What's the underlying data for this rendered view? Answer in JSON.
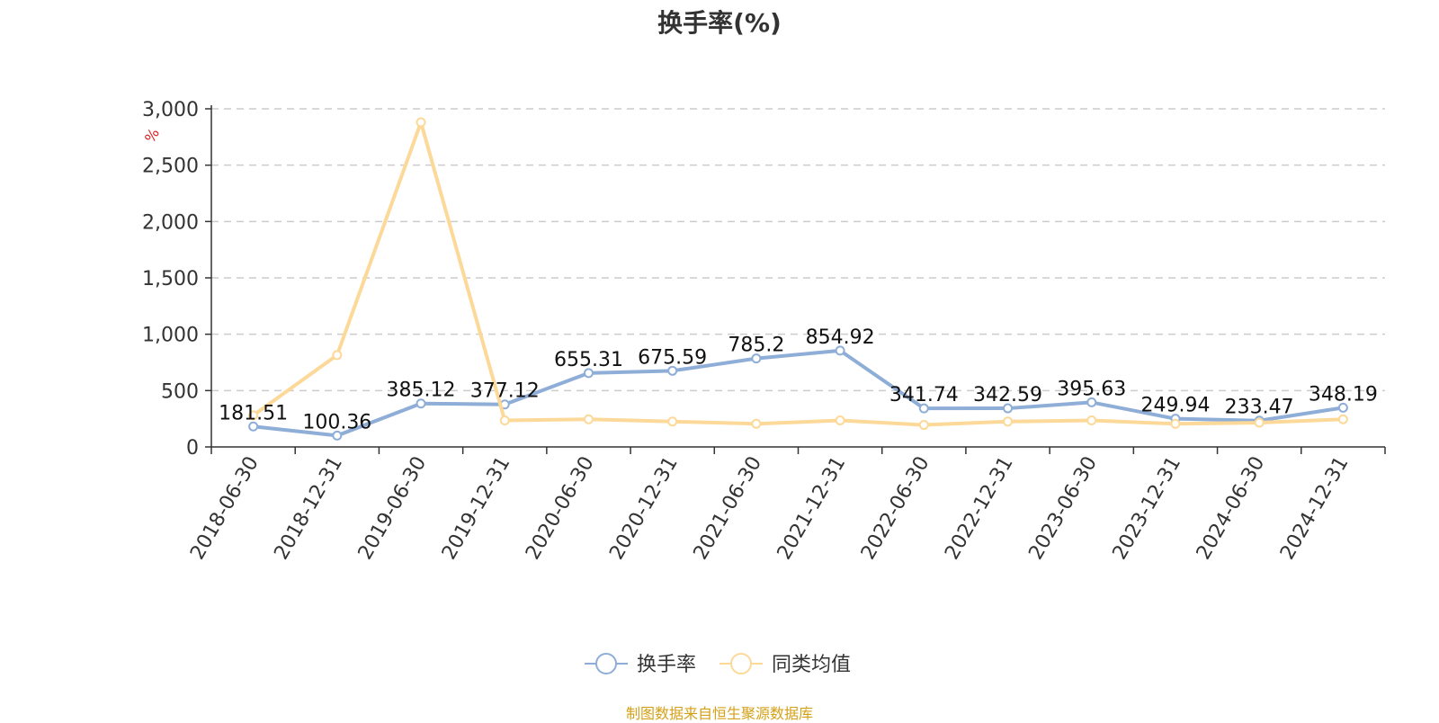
{
  "chart_data": {
    "type": "line",
    "title": "换手率(%)",
    "ylabel": "%",
    "xlabel": "",
    "categories": [
      "2018-06-30",
      "2018-12-31",
      "2019-06-30",
      "2019-12-31",
      "2020-06-30",
      "2020-12-31",
      "2021-06-30",
      "2021-12-31",
      "2022-06-30",
      "2022-12-31",
      "2023-06-30",
      "2023-12-31",
      "2024-06-30",
      "2024-12-31"
    ],
    "ylim": [
      0,
      3000
    ],
    "yticks": [
      0,
      500,
      1000,
      1500,
      2000,
      2500,
      3000
    ],
    "ytick_labels": [
      "0",
      "500",
      "1,000",
      "1,500",
      "2,000",
      "2,500",
      "3,000"
    ],
    "grid": true,
    "legend_position": "bottom-center",
    "series": [
      {
        "name": "换手率",
        "color": "#8eaed8",
        "values": [
          181.51,
          100.36,
          385.12,
          377.12,
          655.31,
          675.59,
          785.2,
          854.92,
          341.74,
          342.59,
          395.63,
          249.94,
          233.47,
          348.19
        ],
        "labels": [
          "181.51",
          "100.36",
          "385.12",
          "377.12",
          "655.31",
          "675.59",
          "785.2",
          "854.92",
          "341.74",
          "342.59",
          "395.63",
          "249.94",
          "233.47",
          "348.19"
        ]
      },
      {
        "name": "同类均值",
        "color": "#fcd999",
        "values": [
          280,
          815,
          2880,
          235,
          245,
          225,
          205,
          235,
          195,
          225,
          235,
          205,
          215,
          245
        ]
      }
    ]
  },
  "source_note": "制图数据来自恒生聚源数据库"
}
